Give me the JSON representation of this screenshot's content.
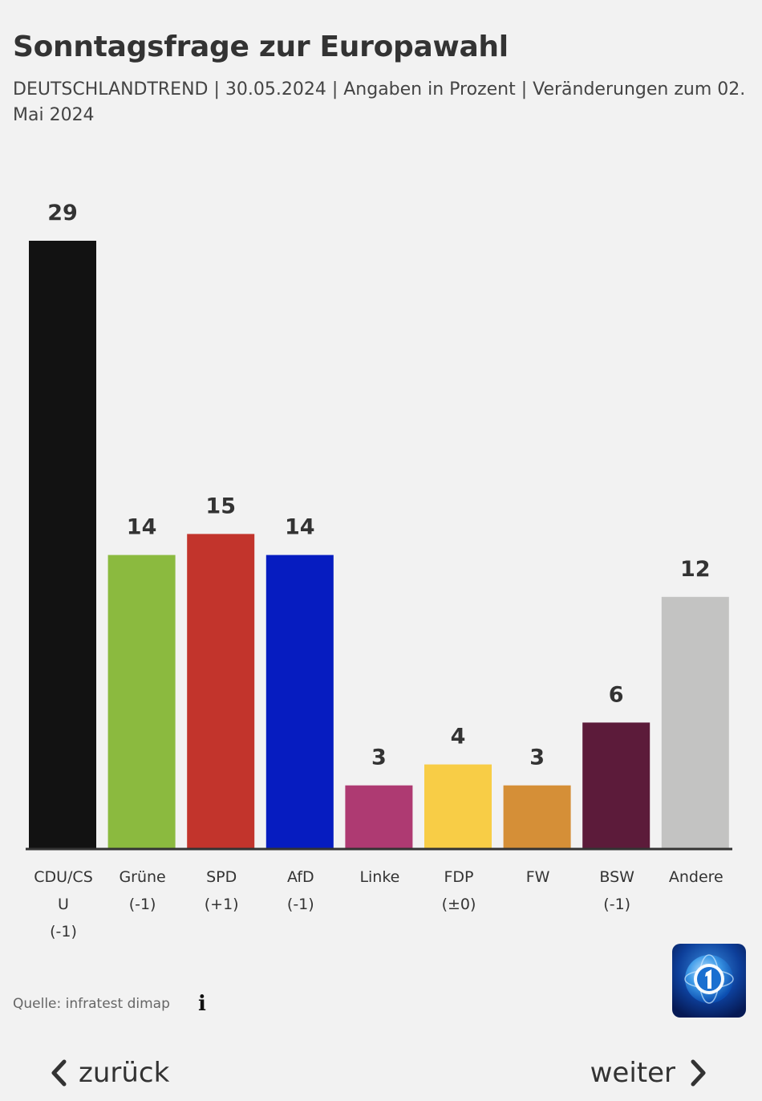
{
  "header": {
    "title": "Sonntagsfrage zur Europawahl",
    "subtitle": "DEUTSCHLANDTREND | 30.05.2024 | Angaben in Prozent | Veränderungen zum 02. Mai 2024"
  },
  "chart_data": {
    "type": "bar",
    "title": "Sonntagsfrage zur Europawahl",
    "subtitle": "DEUTSCHLANDTREND | 30.05.2024 | Angaben in Prozent | Veränderungen zum 02. Mai 2024",
    "xlabel": "",
    "ylabel": "",
    "ylim": [
      0,
      29
    ],
    "grid": false,
    "categories": [
      "CDU/CSU",
      "Grüne",
      "SPD",
      "AfD",
      "Linke",
      "FDP",
      "FW",
      "BSW",
      "Andere"
    ],
    "label_lines": [
      [
        "CDU/CS",
        "U",
        "(-1)"
      ],
      [
        "Grüne",
        "(-1)"
      ],
      [
        "SPD",
        "(+1)"
      ],
      [
        "AfD",
        "(-1)"
      ],
      [
        "Linke"
      ],
      [
        "FDP",
        "(±0)"
      ],
      [
        "FW"
      ],
      [
        "BSW",
        "(-1)"
      ],
      [
        "Andere"
      ]
    ],
    "values": [
      29,
      14,
      15,
      14,
      3,
      4,
      3,
      6,
      12
    ],
    "colors": [
      "#121212",
      "#8bba3f",
      "#c2342c",
      "#061cc0",
      "#ae3a72",
      "#f8cd46",
      "#d58f37",
      "#5c1b3a",
      "#c3c3c2"
    ]
  },
  "footer": {
    "source": "Quelle: infratest dimap",
    "info_icon": "info-icon",
    "logo": "ard-logo"
  },
  "navigation": {
    "prev_label": "zurück",
    "next_label": "weiter",
    "prev_icon": "chevron-left-icon",
    "next_icon": "chevron-right-icon"
  }
}
